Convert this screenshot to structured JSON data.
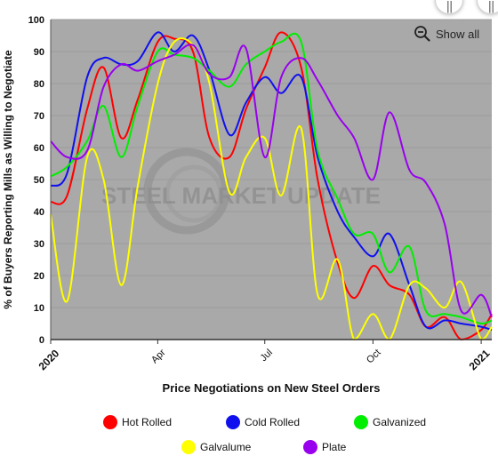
{
  "chart_data": {
    "type": "line",
    "ylabel": "% of Buyers Reporting Mills as Willing to Negotiate",
    "xlabel": "Price Negotiations on New Steel Orders",
    "ylim": [
      0,
      100
    ],
    "yticks": [
      "0",
      "10",
      "20",
      "30",
      "40",
      "50",
      "60",
      "70",
      "80",
      "90",
      "100"
    ],
    "xticks": [
      "2020",
      "Apr",
      "Jul",
      "Oct",
      "2021"
    ],
    "x_start": "2020-01-01",
    "x_end": "2021-01-10",
    "grid": true,
    "legend_position": "bottom",
    "watermark": "STEEL MARKET UPDATE",
    "x": [
      "2020-01-01",
      "2020-01-15",
      "2020-02-01",
      "2020-02-15",
      "2020-03-01",
      "2020-03-15",
      "2020-04-01",
      "2020-04-15",
      "2020-05-01",
      "2020-05-15",
      "2020-06-01",
      "2020-06-15",
      "2020-07-01",
      "2020-07-15",
      "2020-08-01",
      "2020-08-15",
      "2020-09-01",
      "2020-09-15",
      "2020-10-01",
      "2020-10-15",
      "2020-11-01",
      "2020-11-15",
      "2020-12-01",
      "2020-12-15",
      "2021-01-01",
      "2021-01-10"
    ],
    "series": [
      {
        "name": "Hot Rolled",
        "color": "#ff0000",
        "values": [
          43,
          45,
          72,
          85,
          63,
          75,
          93,
          94,
          90,
          63,
          57,
          72,
          85,
          96,
          85,
          50,
          24,
          13,
          23,
          17,
          14,
          4,
          7,
          0,
          3,
          8
        ]
      },
      {
        "name": "Cold Rolled",
        "color": "#1010ee",
        "values": [
          48,
          52,
          82,
          88,
          86,
          87,
          96,
          90,
          95,
          84,
          64,
          74,
          82,
          77,
          82,
          57,
          40,
          32,
          26,
          33,
          17,
          4,
          6,
          5,
          4,
          3
        ]
      },
      {
        "name": "Galvanized",
        "color": "#00ee00",
        "values": [
          51,
          54,
          62,
          73,
          57,
          73,
          90,
          89,
          88,
          84,
          79,
          86,
          90,
          93,
          93,
          59,
          44,
          33,
          33,
          21,
          29,
          9,
          8,
          7,
          5,
          6
        ]
      },
      {
        "name": "Galvalume",
        "color": "#ffff00",
        "values": [
          39,
          12,
          57,
          50,
          17,
          48,
          80,
          93,
          92,
          80,
          46,
          57,
          63,
          45,
          66,
          14,
          25,
          0,
          8,
          0,
          17,
          16,
          10,
          18,
          0,
          4
        ]
      },
      {
        "name": "Plate",
        "color": "#9900ee",
        "values": [
          62,
          57,
          59,
          79,
          86,
          84,
          87,
          89,
          92,
          83,
          82,
          91,
          57,
          82,
          88,
          81,
          70,
          63,
          50,
          71,
          53,
          49,
          36,
          9,
          14,
          7
        ]
      }
    ]
  },
  "controls": {
    "show_all_label": "Show all",
    "zoom_handle_glyph": "||"
  },
  "colors": {
    "plot_background": "#a9a9a9",
    "grid": "#9a9a9a"
  }
}
